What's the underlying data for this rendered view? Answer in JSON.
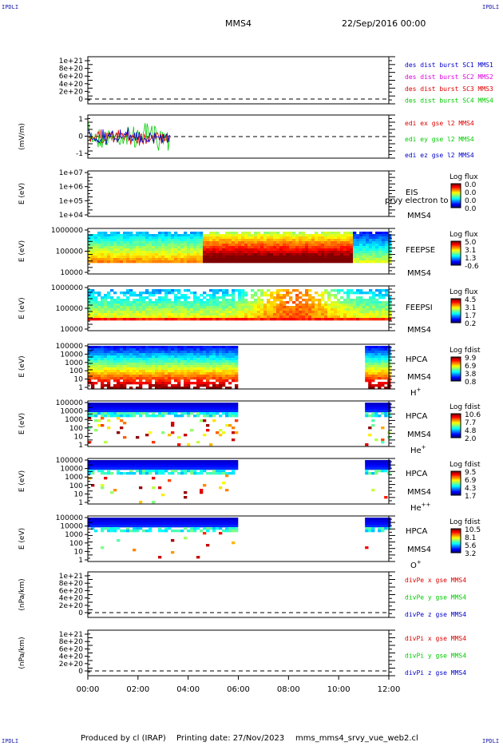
{
  "header": {
    "mission": "MMS4",
    "date": "22/Sep/2016 00:00"
  },
  "corner_labels": [
    "IPDLI",
    "IPDLI",
    "IPDLI",
    "IPDLI"
  ],
  "footer": {
    "produced": "Produced by cl (IRAP)",
    "printing": "Printing date: 27/Nov/2023",
    "file": "mms_mms4_srvy_vue_web2.cl"
  },
  "x_axis": {
    "ticks": [
      "00:00",
      "02:00",
      "04:00",
      "06:00",
      "08:00",
      "10:00",
      "12:00"
    ],
    "range_hours": [
      0,
      12
    ]
  },
  "colors": {
    "red": "#dd0000",
    "magenta": "#dd00dd",
    "green": "#00cc00",
    "blue": "#0000cc"
  },
  "chart_data": [
    {
      "type": "line",
      "ylabel": "",
      "yticks": [
        "1e+21",
        "8e+20",
        "6e+20",
        "4e+20",
        "2e+20",
        "0"
      ],
      "ylim": [
        0,
        1e+21
      ],
      "zero_line": true,
      "legend": [
        {
          "text": "des dist burst SC1 MMS1",
          "color": "#0000cc"
        },
        {
          "text": "des dist burst SC2 MMS2",
          "color": "#dd00dd"
        },
        {
          "text": "des dist burst SC3 MMS3",
          "color": "#dd0000"
        },
        {
          "text": "des dist burst SC4 MMS4",
          "color": "#00cc00"
        }
      ]
    },
    {
      "type": "line",
      "ylabel": "(mV/m)",
      "yticks": [
        "1",
        "0",
        "-1"
      ],
      "ylim": [
        -2,
        2
      ],
      "zero_line": true,
      "data_range_hours": [
        0,
        3.3
      ],
      "legend": [
        {
          "text": "edi ex gse l2 MMS4",
          "color": "#dd0000"
        },
        {
          "text": "edi ey gse l2 MMS4",
          "color": "#00cc00"
        },
        {
          "text": "edi ez gse l2 MMS4",
          "color": "#0000cc"
        }
      ]
    },
    {
      "type": "heatmap",
      "ylabel": "E (eV)",
      "log": true,
      "yticks": [
        "1e+07",
        "1e+06",
        "1e+05",
        "1e+04"
      ],
      "instrument": [
        "EIS",
        "MMS4"
      ],
      "overlay": "prvy electron to",
      "colorbar": {
        "title": "Log flux",
        "ticks": [
          "0.0",
          "0.0",
          "0.0",
          "0.0"
        ]
      },
      "data": "none"
    },
    {
      "type": "heatmap",
      "ylabel": "E (eV)",
      "log": true,
      "yticks": [
        "1000000",
        "100000",
        "10000"
      ],
      "instrument": [
        "FEEPSE",
        "MMS4"
      ],
      "colorbar": {
        "title": "Log flux",
        "ticks": [
          "5.0",
          "3.1",
          "1.3",
          "-0.6"
        ]
      },
      "data": "continuous 0-12h, high flux 5-10h"
    },
    {
      "type": "heatmap",
      "ylabel": "E (eV)",
      "log": true,
      "yticks": [
        "1000000",
        "100000",
        "10000"
      ],
      "instrument": [
        "FEEPSI",
        "MMS4"
      ],
      "colorbar": {
        "title": "Log flux",
        "ticks": [
          "4.5",
          "3.1",
          "1.7",
          "0.2"
        ]
      },
      "data": "continuous 0-12h, peak 7-10h"
    },
    {
      "type": "heatmap",
      "ylabel": "E (eV)",
      "log": true,
      "yticks": [
        "100000",
        "10000",
        "1000",
        "100",
        "10",
        "1"
      ],
      "instrument": [
        "HPCA",
        "MMS4"
      ],
      "species": "H",
      "charge": "+",
      "colorbar": {
        "title": "Log fdist",
        "ticks": [
          "9.9",
          "6.9",
          "3.8",
          "0.8"
        ]
      },
      "data_intervals_hours": [
        [
          0,
          5.95
        ],
        [
          11.05,
          12
        ]
      ]
    },
    {
      "type": "heatmap",
      "ylabel": "E (eV)",
      "log": true,
      "yticks": [
        "100000",
        "10000",
        "1000",
        "100",
        "10",
        "1"
      ],
      "instrument": [
        "HPCA",
        "MMS4"
      ],
      "species": "He",
      "charge": "+",
      "colorbar": {
        "title": "Log fdist",
        "ticks": [
          "10.6",
          "7.7",
          "4.8",
          "2.0"
        ]
      },
      "data_intervals_hours": [
        [
          0,
          5.95
        ],
        [
          11.05,
          12
        ]
      ]
    },
    {
      "type": "heatmap",
      "ylabel": "E (eV)",
      "log": true,
      "yticks": [
        "100000",
        "10000",
        "1000",
        "100",
        "10",
        "1"
      ],
      "instrument": [
        "HPCA",
        "MMS4"
      ],
      "species": "He",
      "charge": "++",
      "colorbar": {
        "title": "Log fdist",
        "ticks": [
          "9.5",
          "6.9",
          "4.3",
          "1.7"
        ]
      },
      "data_intervals_hours": [
        [
          0,
          5.95
        ],
        [
          11.05,
          12
        ]
      ]
    },
    {
      "type": "heatmap",
      "ylabel": "E (eV)",
      "log": true,
      "yticks": [
        "100000",
        "10000",
        "1000",
        "100",
        "10",
        "1"
      ],
      "instrument": [
        "HPCA",
        "MMS4"
      ],
      "species": "O",
      "charge": "+",
      "colorbar": {
        "title": "Log fdist",
        "ticks": [
          "10.5",
          "8.1",
          "5.6",
          "3.2"
        ]
      },
      "data_intervals_hours": [
        [
          0,
          5.95
        ],
        [
          11.05,
          12
        ]
      ]
    },
    {
      "type": "line",
      "ylabel": "(nPa/km)",
      "yticks": [
        "1e+21",
        "8e+20",
        "6e+20",
        "4e+20",
        "2e+20",
        "0"
      ],
      "ylim": [
        0,
        1e+21
      ],
      "zero_line": true,
      "legend": [
        {
          "text": "divPe x gse MMS4",
          "color": "#dd0000"
        },
        {
          "text": "divPe y gse MMS4",
          "color": "#00cc00"
        },
        {
          "text": "divPe z gse MMS4",
          "color": "#0000cc"
        }
      ]
    },
    {
      "type": "line",
      "ylabel": "(nPa/km)",
      "yticks": [
        "1e+21",
        "8e+20",
        "6e+20",
        "4e+20",
        "2e+20",
        "0"
      ],
      "ylim": [
        0,
        1e+21
      ],
      "zero_line": true,
      "legend": [
        {
          "text": "divPi x gse MMS4",
          "color": "#dd0000"
        },
        {
          "text": "divPi y gse MMS4",
          "color": "#00cc00"
        },
        {
          "text": "divPi z gse MMS4",
          "color": "#0000cc"
        }
      ]
    }
  ]
}
